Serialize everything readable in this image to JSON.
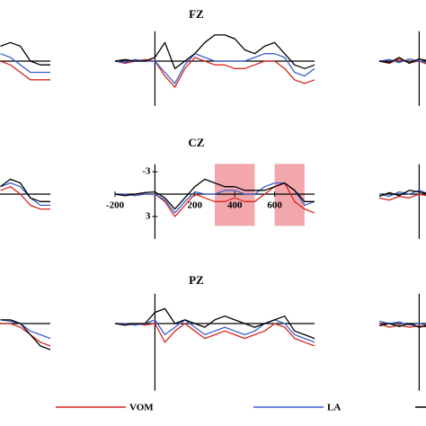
{
  "chart_data": [
    {
      "type": "line",
      "x": [
        550,
        600,
        650,
        700,
        750,
        800
      ],
      "xlim": [
        -200,
        800
      ],
      "ylim": [
        -4,
        6
      ],
      "y_inverted": true,
      "series": [
        {
          "color": "#d7261e",
          "values": [
            0,
            0.5,
            1.5,
            2.5,
            2.5,
            2.5
          ]
        },
        {
          "color": "#3a5fcd",
          "values": [
            -1,
            -0.5,
            0.5,
            1.5,
            1.5,
            1.5
          ]
        },
        {
          "color": "#000000",
          "values": [
            -2,
            -2.5,
            -2,
            0,
            0.5,
            0.5
          ]
        }
      ]
    },
    {
      "type": "line",
      "title": "FZ",
      "x": [
        -200,
        -150,
        -100,
        -50,
        0,
        50,
        100,
        150,
        200,
        250,
        300,
        350,
        400,
        450,
        500,
        550,
        600,
        650,
        700,
        750,
        800
      ],
      "xlim": [
        -200,
        800
      ],
      "ylim": [
        -4,
        6
      ],
      "y_inverted": true,
      "series": [
        {
          "name": "VOM",
          "color": "#d7261e",
          "values": [
            0,
            0.3,
            0,
            -0.2,
            0,
            2,
            3.5,
            1,
            -0.5,
            0,
            0.5,
            0.5,
            1,
            1,
            0.5,
            0,
            0,
            1,
            2.5,
            3,
            2.5
          ]
        },
        {
          "name": "LA",
          "color": "#3a5fcd",
          "values": [
            0,
            0.2,
            -0.2,
            0,
            0,
            1.5,
            3,
            0.5,
            -1,
            -0.5,
            0,
            0,
            0,
            0,
            -0.5,
            -1,
            -1,
            -0.5,
            1.5,
            2,
            1
          ]
        },
        {
          "color": "#000000",
          "values": [
            0,
            -0.2,
            0,
            0,
            -0.5,
            -2.5,
            1,
            0,
            -1,
            -2.5,
            -3.5,
            -3.5,
            -3,
            -1.5,
            -1,
            -2,
            -2.5,
            -1,
            0.5,
            1,
            0.5
          ]
        }
      ]
    },
    {
      "type": "line",
      "x": [
        -200,
        -150,
        -100,
        -50,
        0,
        50
      ],
      "xlim": [
        -200,
        800
      ],
      "ylim": [
        -4,
        6
      ],
      "y_inverted": true,
      "series": [
        {
          "color": "#d7261e",
          "values": [
            0,
            0.3,
            -0.3,
            0.2,
            0,
            0.5
          ]
        },
        {
          "color": "#3a5fcd",
          "values": [
            0,
            -0.2,
            0.2,
            -0.3,
            0,
            0.3
          ]
        },
        {
          "color": "#000000",
          "values": [
            0,
            0.2,
            -0.5,
            0.3,
            -0.3,
            0
          ]
        }
      ]
    },
    {
      "type": "line",
      "x": [
        550,
        600,
        650,
        700,
        750,
        800
      ],
      "xlim": [
        -200,
        800
      ],
      "ylim": [
        -4,
        6
      ],
      "y_inverted": true,
      "series": [
        {
          "color": "#d7261e",
          "values": [
            -0.5,
            -1,
            0,
            1.5,
            2,
            2
          ]
        },
        {
          "color": "#3a5fcd",
          "values": [
            -1,
            -1.5,
            -1,
            0.5,
            1.5,
            1.5
          ]
        },
        {
          "color": "#000000",
          "values": [
            -1,
            -2,
            -1.5,
            0.5,
            1,
            1
          ]
        }
      ]
    },
    {
      "type": "line",
      "title": "CZ",
      "x": [
        -200,
        -150,
        -100,
        -50,
        0,
        50,
        100,
        150,
        200,
        250,
        300,
        350,
        400,
        450,
        500,
        550,
        600,
        650,
        700,
        750,
        800
      ],
      "xlim": [
        -200,
        800
      ],
      "ylim": [
        -4,
        6
      ],
      "y_inverted": true,
      "xticks": [
        -200,
        200,
        400,
        600
      ],
      "yticks": [
        -3,
        3
      ],
      "highlight_ranges": [
        [
          300,
          500
        ],
        [
          600,
          750
        ]
      ],
      "highlight_color": "#ee8a92",
      "series": [
        {
          "name": "VOM",
          "color": "#d7261e",
          "values": [
            0,
            0.2,
            0,
            0,
            0,
            1,
            3,
            1.5,
            0,
            0.5,
            1,
            1,
            0.5,
            1,
            1,
            0,
            -1,
            -1.5,
            1,
            2,
            2.5
          ]
        },
        {
          "name": "LA",
          "color": "#3a5fcd",
          "values": [
            0,
            0,
            0.2,
            0,
            0,
            0.8,
            2.5,
            1,
            -0.3,
            0,
            0,
            -0.5,
            -0.5,
            0,
            0,
            -1,
            -1.5,
            -1.5,
            -0.5,
            1.5,
            1
          ]
        },
        {
          "color": "#000000",
          "values": [
            0,
            0.2,
            0,
            -0.2,
            -0.3,
            0.5,
            2,
            0.5,
            -1,
            -2,
            -1.5,
            -1,
            -1,
            -0.5,
            -0.5,
            -0.5,
            -1,
            -1.5,
            -0.5,
            1,
            1
          ]
        }
      ]
    },
    {
      "type": "line",
      "x": [
        -200,
        -150,
        -100,
        -50,
        0,
        50
      ],
      "xlim": [
        -200,
        800
      ],
      "ylim": [
        -4,
        6
      ],
      "y_inverted": true,
      "series": [
        {
          "color": "#d7261e",
          "values": [
            0.5,
            0.8,
            0.3,
            0.5,
            0,
            0.3
          ]
        },
        {
          "color": "#3a5fcd",
          "values": [
            0,
            0.3,
            -0.3,
            0,
            -0.5,
            0
          ]
        },
        {
          "color": "#000000",
          "values": [
            0.3,
            -0.2,
            0.2,
            -0.5,
            -0.3,
            0
          ]
        }
      ]
    },
    {
      "type": "line",
      "x": [
        550,
        600,
        650,
        700,
        750,
        800
      ],
      "xlim": [
        -200,
        800
      ],
      "ylim": [
        -4,
        9
      ],
      "y_inverted": true,
      "series": [
        {
          "color": "#d7261e",
          "values": [
            0,
            0,
            0.5,
            1.5,
            2.5,
            3
          ]
        },
        {
          "color": "#3a5fcd",
          "values": [
            -0.5,
            -0.3,
            0,
            1,
            1.5,
            2
          ]
        },
        {
          "color": "#000000",
          "values": [
            -0.5,
            -0.5,
            0,
            1.5,
            3,
            3.5
          ]
        }
      ]
    },
    {
      "type": "line",
      "title": "PZ",
      "x": [
        -200,
        -150,
        -100,
        -50,
        0,
        50,
        100,
        150,
        200,
        250,
        300,
        350,
        400,
        450,
        500,
        550,
        600,
        650,
        700,
        750,
        800
      ],
      "xlim": [
        -200,
        800
      ],
      "ylim": [
        -4,
        9
      ],
      "y_inverted": true,
      "series": [
        {
          "name": "VOM",
          "color": "#d7261e",
          "values": [
            0,
            0.2,
            0,
            0.2,
            0,
            2.5,
            1,
            0,
            1,
            2,
            1.5,
            1,
            1.5,
            2,
            1.5,
            1,
            0,
            0.5,
            2,
            2.5,
            3
          ]
        },
        {
          "name": "LA",
          "color": "#3a5fcd",
          "values": [
            0,
            0,
            0.2,
            0,
            -0.5,
            1.5,
            0.5,
            -0.5,
            0.5,
            1.5,
            1,
            0.5,
            1,
            1.5,
            1,
            0,
            -0.5,
            0,
            1.5,
            2,
            2.5
          ]
        },
        {
          "color": "#000000",
          "values": [
            0,
            0.2,
            0,
            0,
            -1.5,
            -2,
            0,
            -0.5,
            0,
            0.5,
            -0.5,
            -1,
            -0.5,
            0,
            0.5,
            0,
            -0.5,
            -1,
            1,
            1.5,
            2
          ]
        }
      ]
    },
    {
      "type": "line",
      "x": [
        -200,
        -150,
        -100,
        -50,
        0,
        50
      ],
      "xlim": [
        -200,
        800
      ],
      "ylim": [
        -4,
        9
      ],
      "y_inverted": true,
      "series": [
        {
          "color": "#d7261e",
          "values": [
            0,
            0.5,
            0.2,
            0.5,
            0.3,
            0.5
          ]
        },
        {
          "color": "#3a5fcd",
          "values": [
            -0.3,
            0,
            -0.2,
            0.2,
            0,
            0.3
          ]
        },
        {
          "color": "#000000",
          "values": [
            0.3,
            0,
            0.4,
            0,
            0.5,
            0.2
          ]
        }
      ]
    }
  ]
}
